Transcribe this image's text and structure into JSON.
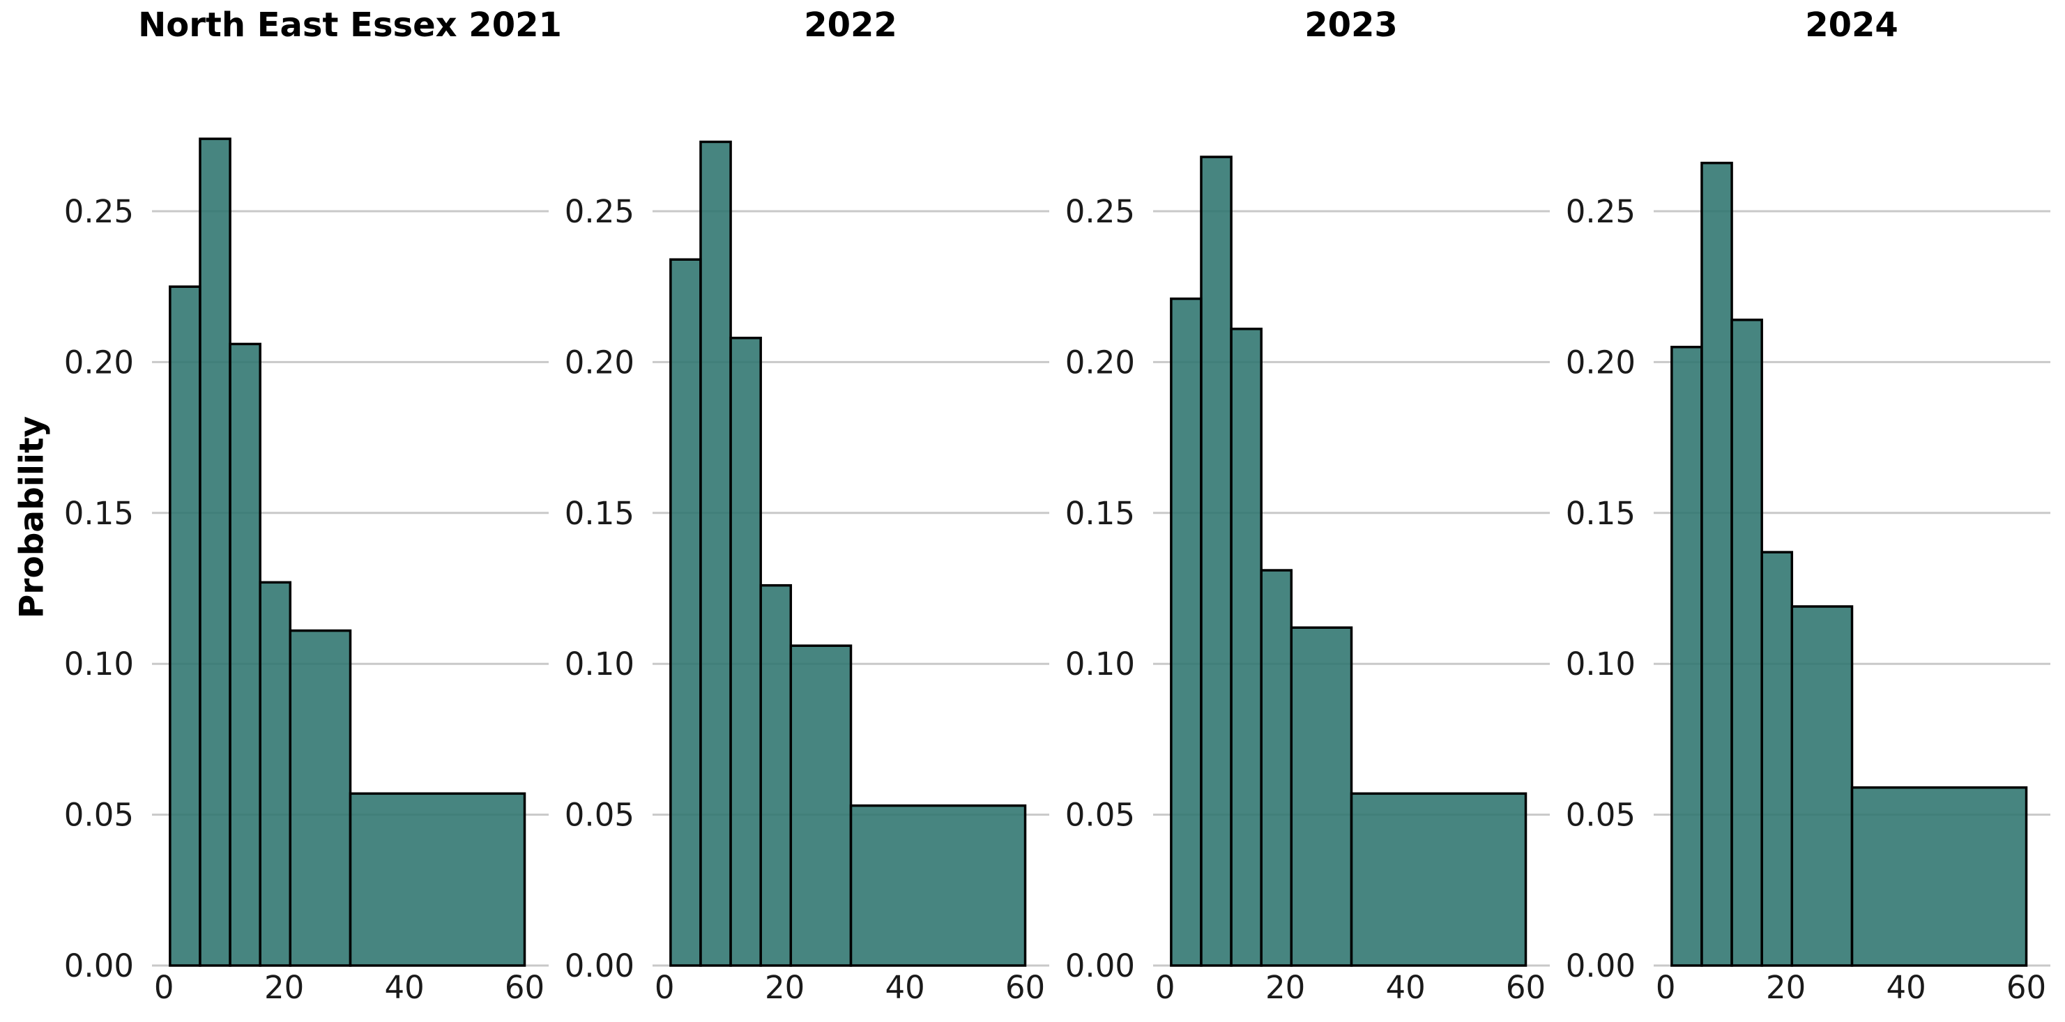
{
  "figure": {
    "background": "#ffffff",
    "ylabel": "Probability"
  },
  "chart_data": {
    "type": "bar",
    "subtype": "histogram-small-multiples",
    "shared": {
      "ylabel": "Probability",
      "bin_edges": [
        1,
        6,
        11,
        16,
        21,
        31,
        60
      ],
      "xticks": [
        0,
        20,
        40,
        60
      ],
      "xtick_labels": [
        "0",
        "20",
        "40",
        "60"
      ],
      "ytick_values": [
        0,
        0.05,
        0.1,
        0.15,
        0.2,
        0.25
      ],
      "ytick_labels": [
        "0.00",
        "0.05",
        "0.10",
        "0.15",
        "0.20",
        "0.25"
      ],
      "xlim": [
        -2,
        64
      ],
      "ylim": [
        0,
        0.2877
      ],
      "grid": "horizontal-only",
      "legend": "none",
      "bar_fill": "#2d746e",
      "bar_fill_opacity": 0.88,
      "bar_edge_color": "#000000",
      "grid_color": "#c9c9c9",
      "tick_label_color": "#1a1a1a"
    },
    "charts": [
      {
        "title": "North East Essex 2021",
        "values": [
          0.225,
          0.274,
          0.206,
          0.127,
          0.111,
          0.057
        ]
      },
      {
        "title": "2022",
        "values": [
          0.234,
          0.273,
          0.208,
          0.126,
          0.106,
          0.053
        ]
      },
      {
        "title": "2023",
        "values": [
          0.221,
          0.268,
          0.211,
          0.131,
          0.112,
          0.057
        ]
      },
      {
        "title": "2024",
        "values": [
          0.205,
          0.266,
          0.214,
          0.137,
          0.119,
          0.059
        ]
      }
    ]
  }
}
